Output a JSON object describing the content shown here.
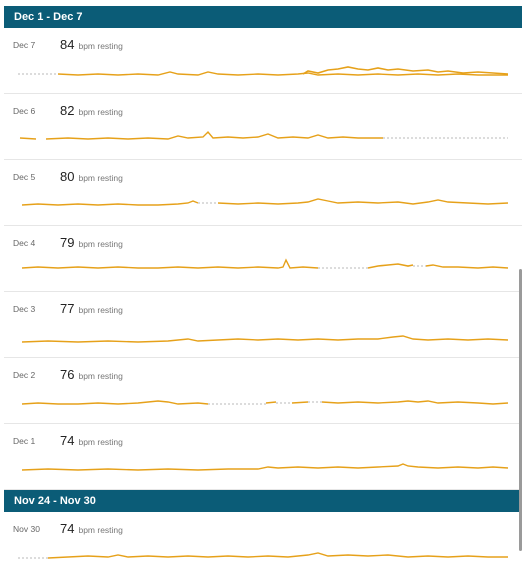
{
  "weeks": [
    {
      "label": "Dec 1 - Dec 7",
      "days": [
        {
          "date": "Dec 7",
          "bpm": "84",
          "unit": "bpm resting"
        },
        {
          "date": "Dec 6",
          "bpm": "82",
          "unit": "bpm resting"
        },
        {
          "date": "Dec 5",
          "bpm": "80",
          "unit": "bpm resting"
        },
        {
          "date": "Dec 4",
          "bpm": "79",
          "unit": "bpm resting"
        },
        {
          "date": "Dec 3",
          "bpm": "77",
          "unit": "bpm resting"
        },
        {
          "date": "Dec 2",
          "bpm": "76",
          "unit": "bpm resting"
        },
        {
          "date": "Dec 1",
          "bpm": "74",
          "unit": "bpm resting"
        }
      ]
    },
    {
      "label": "Nov 24 - Nov 30",
      "days": [
        {
          "date": "Nov 30",
          "bpm": "74",
          "unit": "bpm resting"
        }
      ]
    }
  ],
  "colors": {
    "header_bg": "#0b5c77",
    "line": "#e6a11a",
    "gap_line": "#b8b8b8"
  }
}
